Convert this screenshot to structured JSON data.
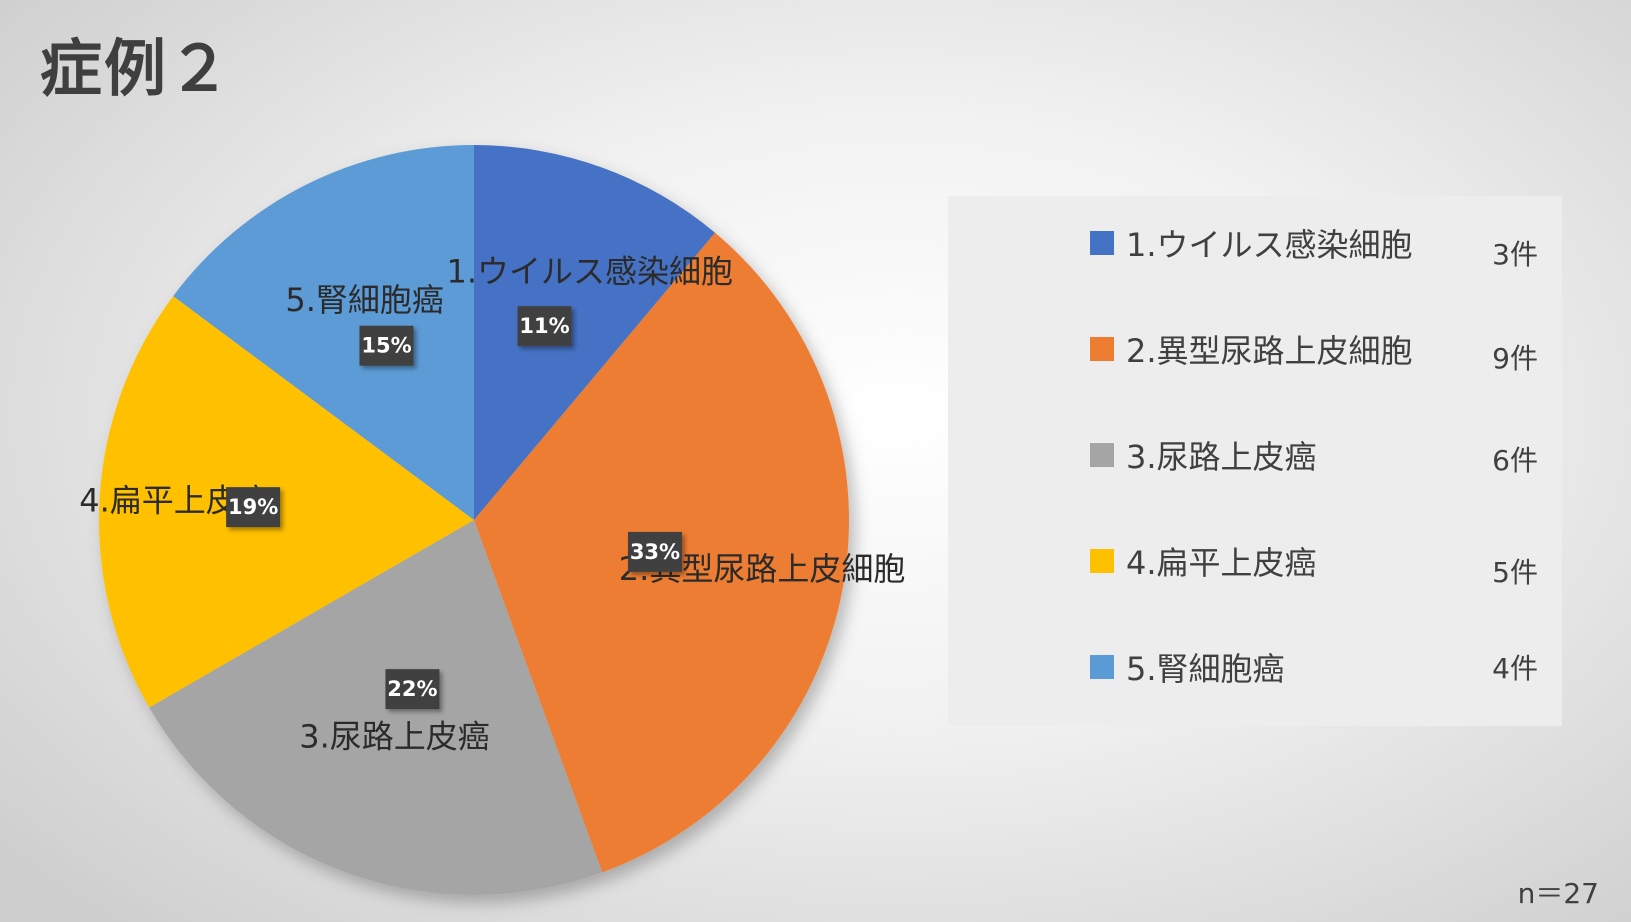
{
  "title": "症例２",
  "note": "n＝27",
  "colors": {
    "viral": "#4472C4",
    "atypical": "#ED7D31",
    "urothelial": "#A5A5A5",
    "squamous": "#FFC000",
    "renal": "#5B9BD5",
    "data_label_bg": "#404040"
  },
  "chart_data": {
    "type": "pie",
    "title": "症例２",
    "categories": [
      "1.ウイルス感染細胞",
      "2.異型尿路上皮細胞",
      "3.尿路上皮癌",
      "4.扁平上皮癌",
      "5.腎細胞癌"
    ],
    "values": [
      3,
      9,
      6,
      5,
      4
    ],
    "percent_labels": [
      "11%",
      "33%",
      "22%",
      "19%",
      "15%"
    ],
    "count_labels": [
      "3件",
      "9件",
      "6件",
      "5件",
      "4件"
    ],
    "start_angle_deg": 0,
    "direction": "clockwise",
    "legend_position": "right"
  }
}
